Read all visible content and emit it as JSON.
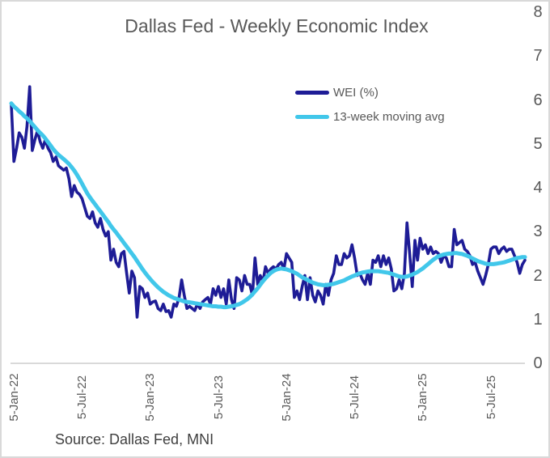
{
  "chart_data": {
    "type": "line",
    "title": "Dallas Fed - Weekly Economic Index",
    "source": "Source: Dallas Fed, MNI",
    "gridlines": false,
    "legend_position": "upper-center",
    "x_axis": {
      "unit": "weekly observations starting 5-Jan-22",
      "tick_labels": [
        "5-Jan-22",
        "5-Jul-22",
        "5-Jan-23",
        "5-Jul-23",
        "5-Jan-24",
        "5-Jul-24",
        "5-Jan-25",
        "5-Jul-25"
      ],
      "tick_weeks": [
        0,
        26,
        52,
        78,
        104,
        130,
        156,
        182
      ]
    },
    "y_axis": {
      "min": 0,
      "max": 8,
      "tick_labels": [
        "8",
        "7",
        "6",
        "5",
        "4",
        "3",
        "2",
        "1",
        "0"
      ]
    },
    "series": [
      {
        "name": "WEI (%)",
        "color": "#1E1C96",
        "values": [
          5.9,
          4.6,
          4.9,
          5.25,
          5.15,
          4.9,
          5.4,
          6.3,
          4.85,
          5.1,
          5.3,
          5.05,
          4.9,
          5.1,
          4.9,
          4.8,
          4.6,
          4.7,
          4.5,
          4.45,
          4.4,
          4.45,
          4.2,
          3.8,
          4.05,
          3.9,
          3.85,
          3.75,
          3.55,
          3.35,
          3.3,
          3.45,
          3.2,
          3.1,
          3.3,
          3.05,
          2.9,
          3.0,
          2.35,
          2.6,
          2.3,
          2.2,
          2.5,
          2.55,
          2.05,
          1.6,
          2.1,
          1.95,
          1.05,
          1.75,
          1.7,
          1.5,
          1.6,
          1.35,
          1.4,
          1.42,
          1.25,
          1.2,
          1.35,
          1.18,
          1.2,
          1.05,
          1.35,
          1.3,
          1.5,
          1.9,
          1.55,
          1.25,
          1.3,
          1.25,
          1.2,
          1.35,
          1.25,
          1.4,
          1.45,
          1.5,
          1.35,
          1.7,
          1.55,
          1.75,
          1.5,
          1.7,
          1.35,
          1.9,
          1.45,
          1.25,
          1.95,
          1.9,
          1.65,
          2.0,
          1.8,
          1.8,
          1.55,
          2.4,
          1.8,
          2.0,
          1.85,
          2.2,
          2.05,
          2.15,
          2.2,
          2.15,
          2.25,
          2.3,
          2.15,
          2.5,
          2.4,
          2.3,
          1.5,
          1.65,
          1.45,
          1.75,
          2.0,
          1.45,
          1.95,
          1.55,
          1.4,
          1.65,
          1.55,
          1.35,
          1.8,
          1.55,
          1.9,
          2.05,
          2.45,
          2.25,
          2.25,
          2.5,
          2.4,
          2.45,
          2.7,
          2.4,
          2.0,
          2.05,
          1.9,
          1.8,
          2.05,
          1.8,
          2.35,
          2.3,
          2.45,
          2.2,
          2.45,
          2.25,
          2.4,
          2.15,
          1.65,
          1.7,
          1.9,
          1.7,
          2.05,
          3.2,
          2.5,
          1.75,
          2.8,
          2.35,
          2.85,
          2.6,
          2.7,
          2.5,
          2.65,
          2.5,
          2.55,
          2.5,
          2.3,
          2.45,
          2.4,
          2.2,
          2.2,
          3.05,
          2.7,
          2.75,
          2.8,
          2.6,
          2.55,
          2.45,
          2.25,
          2.3,
          2.1,
          1.95,
          1.8,
          2.0,
          2.25,
          2.6,
          2.65,
          2.65,
          2.5,
          2.6,
          2.65,
          2.55,
          2.6,
          2.6,
          2.45,
          2.3,
          2.05,
          2.25,
          2.35
        ]
      },
      {
        "name": "13-week moving avg",
        "color": "#41C7EA",
        "values": [
          5.92,
          5.85,
          5.8,
          5.74,
          5.69,
          5.63,
          5.58,
          5.52,
          5.45,
          5.38,
          5.31,
          5.25,
          5.19,
          5.12,
          5.04,
          4.96,
          4.88,
          4.81,
          4.75,
          4.7,
          4.65,
          4.6,
          4.54,
          4.47,
          4.39,
          4.3,
          4.2,
          4.09,
          3.98,
          3.87,
          3.78,
          3.7,
          3.62,
          3.54,
          3.46,
          3.38,
          3.3,
          3.22,
          3.13,
          3.05,
          2.98,
          2.9,
          2.82,
          2.74,
          2.66,
          2.58,
          2.5,
          2.42,
          2.33,
          2.24,
          2.15,
          2.07,
          1.99,
          1.92,
          1.85,
          1.79,
          1.73,
          1.68,
          1.63,
          1.59,
          1.55,
          1.52,
          1.49,
          1.47,
          1.45,
          1.43,
          1.41,
          1.4,
          1.39,
          1.38,
          1.37,
          1.36,
          1.35,
          1.34,
          1.33,
          1.32,
          1.31,
          1.3,
          1.3,
          1.29,
          1.29,
          1.28,
          1.28,
          1.29,
          1.3,
          1.31,
          1.33,
          1.35,
          1.38,
          1.42,
          1.46,
          1.51,
          1.57,
          1.64,
          1.71,
          1.79,
          1.87,
          1.94,
          2.0,
          2.06,
          2.1,
          2.13,
          2.15,
          2.16,
          2.15,
          2.14,
          2.12,
          2.1,
          2.07,
          2.04,
          2.0,
          1.96,
          1.93,
          1.9,
          1.87,
          1.84,
          1.82,
          1.8,
          1.79,
          1.78,
          1.78,
          1.79,
          1.8,
          1.81,
          1.83,
          1.85,
          1.87,
          1.89,
          1.92,
          1.95,
          1.98,
          2.0,
          2.03,
          2.05,
          2.07,
          2.08,
          2.09,
          2.1,
          2.1,
          2.1,
          2.1,
          2.09,
          2.08,
          2.07,
          2.06,
          2.04,
          2.02,
          2.0,
          1.98,
          1.97,
          1.97,
          1.98,
          2.0,
          2.02,
          2.05,
          2.08,
          2.12,
          2.16,
          2.21,
          2.26,
          2.31,
          2.36,
          2.4,
          2.44,
          2.46,
          2.48,
          2.49,
          2.5,
          2.5,
          2.51,
          2.51,
          2.5,
          2.49,
          2.47,
          2.45,
          2.42,
          2.39,
          2.36,
          2.33,
          2.31,
          2.29,
          2.27,
          2.26,
          2.26,
          2.26,
          2.27,
          2.28,
          2.29,
          2.3,
          2.32,
          2.34,
          2.36,
          2.38,
          2.4,
          2.41,
          2.42,
          2.42
        ]
      }
    ]
  },
  "colors": {
    "axis_line": "#D9D9D9",
    "text_gray": "#595959",
    "source_text": "#3F3F3F"
  }
}
